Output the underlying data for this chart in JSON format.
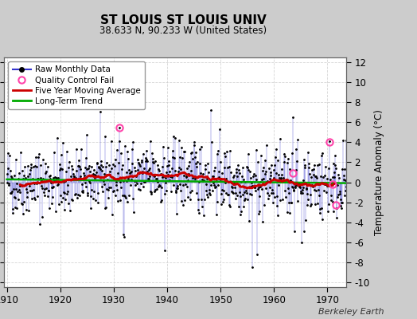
{
  "title": "ST LOUIS ST LOUIS UNIV",
  "subtitle": "38.633 N, 90.233 W (United States)",
  "watermark": "Berkeley Earth",
  "ylabel": "Temperature Anomaly (°C)",
  "year_start": 1910,
  "year_end": 1974,
  "ylim": [
    -10.5,
    12.5
  ],
  "yticks": [
    -10,
    -8,
    -6,
    -4,
    -2,
    0,
    2,
    4,
    6,
    8,
    10,
    12
  ],
  "bg_color": "#cccccc",
  "plot_bg_color": "#ffffff",
  "grid_color": "#cccccc",
  "raw_line_color": "#3333cc",
  "raw_dot_color": "#000000",
  "moving_avg_color": "#cc0000",
  "trend_color": "#00aa00",
  "qc_fail_color": "#ff44aa",
  "qc_fail_years": [
    1931.1,
    1963.6,
    1970.4,
    1971.0,
    1971.6
  ],
  "qc_fail_values": [
    5.5,
    0.9,
    4.0,
    -0.2,
    -2.3
  ],
  "seed": 42
}
